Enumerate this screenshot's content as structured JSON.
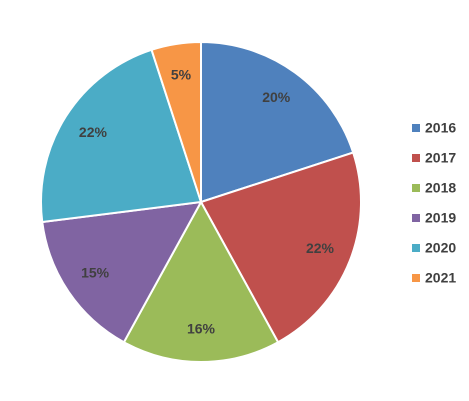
{
  "chart_data": {
    "type": "pie",
    "categories": [
      "2016",
      "2017",
      "2018",
      "2019",
      "2020",
      "2021"
    ],
    "values": [
      20,
      22,
      16,
      15,
      22,
      5
    ],
    "value_labels": [
      "20%",
      "22%",
      "16%",
      "15%",
      "22%",
      "5%"
    ],
    "colors": [
      "#4f81bd",
      "#c0504d",
      "#9bbb59",
      "#8064a2",
      "#4bacc6",
      "#f79646"
    ],
    "legend": "right"
  }
}
